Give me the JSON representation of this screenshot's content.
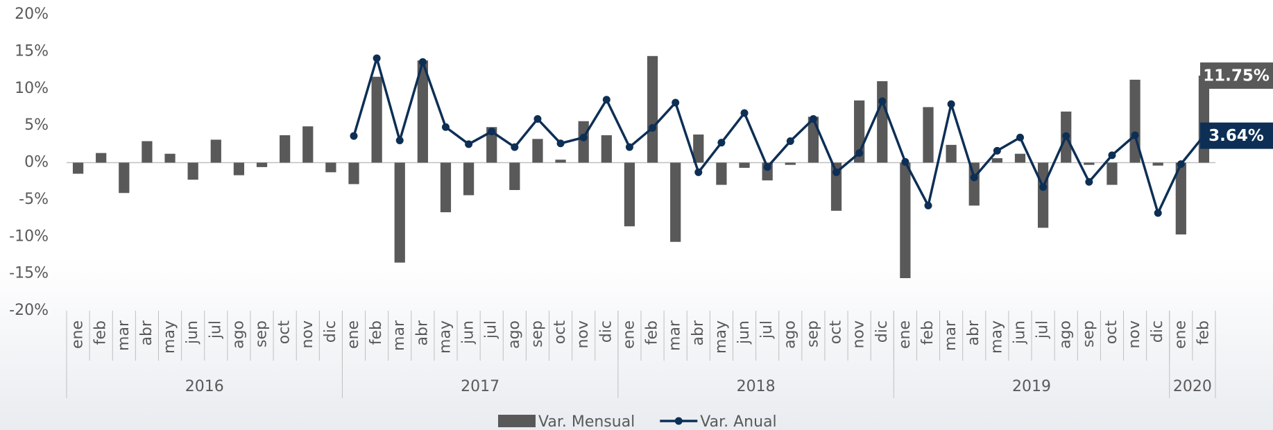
{
  "chart_data": {
    "type": "bar_line",
    "categories": [
      "ene",
      "feb",
      "mar",
      "abr",
      "may",
      "jun",
      "jul",
      "ago",
      "sep",
      "oct",
      "nov",
      "dic",
      "ene",
      "feb",
      "mar",
      "abr",
      "may",
      "jun",
      "jul",
      "ago",
      "sep",
      "oct",
      "nov",
      "dic",
      "ene",
      "feb",
      "mar",
      "abr",
      "may",
      "jun",
      "jul",
      "ago",
      "sep",
      "oct",
      "nov",
      "dic",
      "ene",
      "feb",
      "mar",
      "abr",
      "may",
      "jun",
      "jul",
      "ago",
      "sep",
      "oct",
      "nov",
      "dic",
      "ene",
      "feb"
    ],
    "x_groups": [
      {
        "label": "2016",
        "categories": 12
      },
      {
        "label": "2017",
        "categories": 12
      },
      {
        "label": "2018",
        "categories": 12
      },
      {
        "label": "2019",
        "categories": 12
      },
      {
        "label": "2020",
        "categories": 2
      }
    ],
    "series": [
      {
        "name": "Var. Mensual",
        "type": "bar",
        "color": "#595959",
        "values": [
          -1.5,
          1.3,
          -4.1,
          2.9,
          1.2,
          -2.3,
          3.1,
          -1.7,
          -0.6,
          3.7,
          4.9,
          -1.3,
          -2.9,
          11.6,
          -13.5,
          13.8,
          -6.7,
          -4.4,
          4.8,
          -3.7,
          3.2,
          0.4,
          5.6,
          3.7,
          -8.6,
          14.4,
          -10.7,
          3.8,
          -3.0,
          -0.7,
          -2.4,
          -0.3,
          6.2,
          -6.5,
          8.4,
          11.0,
          -15.6,
          7.5,
          2.4,
          -5.8,
          0.6,
          1.2,
          -8.8,
          6.9,
          -0.3,
          -3.0,
          11.2,
          -0.4,
          -9.7,
          11.75
        ],
        "value_labels": [
          null,
          null,
          null,
          null,
          null,
          null,
          null,
          null,
          null,
          null,
          null,
          null,
          null,
          null,
          null,
          null,
          null,
          null,
          null,
          null,
          null,
          null,
          null,
          null,
          null,
          null,
          null,
          null,
          null,
          null,
          null,
          null,
          null,
          null,
          null,
          null,
          null,
          null,
          null,
          null,
          null,
          null,
          null,
          null,
          null,
          null,
          null,
          null,
          null,
          "11.75%"
        ]
      },
      {
        "name": "Var. Anual",
        "type": "line",
        "color": "#0d2f55",
        "values": [
          null,
          null,
          null,
          null,
          null,
          null,
          null,
          null,
          null,
          null,
          null,
          null,
          3.6,
          14.1,
          3.0,
          13.6,
          4.8,
          2.5,
          4.2,
          2.1,
          5.9,
          2.6,
          3.4,
          8.5,
          2.1,
          4.7,
          8.1,
          -1.3,
          2.7,
          6.7,
          -0.6,
          2.9,
          5.9,
          -1.3,
          1.3,
          8.3,
          0.1,
          -5.8,
          7.9,
          -2.0,
          1.6,
          3.4,
          -3.3,
          3.6,
          -2.6,
          1.0,
          3.7,
          -6.8,
          -0.2,
          3.64
        ],
        "value_labels": [
          null,
          null,
          null,
          null,
          null,
          null,
          null,
          null,
          null,
          null,
          null,
          null,
          null,
          null,
          null,
          null,
          null,
          null,
          null,
          null,
          null,
          null,
          null,
          null,
          null,
          null,
          null,
          null,
          null,
          null,
          null,
          null,
          null,
          null,
          null,
          null,
          null,
          null,
          null,
          null,
          null,
          null,
          null,
          null,
          null,
          null,
          null,
          null,
          null,
          "3.64%"
        ]
      }
    ],
    "ylim": [
      -20,
      20
    ],
    "yticks": [
      {
        "value": -20,
        "label": "-20%"
      },
      {
        "value": -15,
        "label": "-15%"
      },
      {
        "value": -10,
        "label": "-10%"
      },
      {
        "value": -5,
        "label": "-5%"
      },
      {
        "value": 0,
        "label": "0%"
      },
      {
        "value": 5,
        "label": "5%"
      },
      {
        "value": 10,
        "label": "10%"
      },
      {
        "value": 15,
        "label": "15%"
      },
      {
        "value": 20,
        "label": "20%"
      }
    ],
    "grid": false,
    "legend": "bottom"
  }
}
